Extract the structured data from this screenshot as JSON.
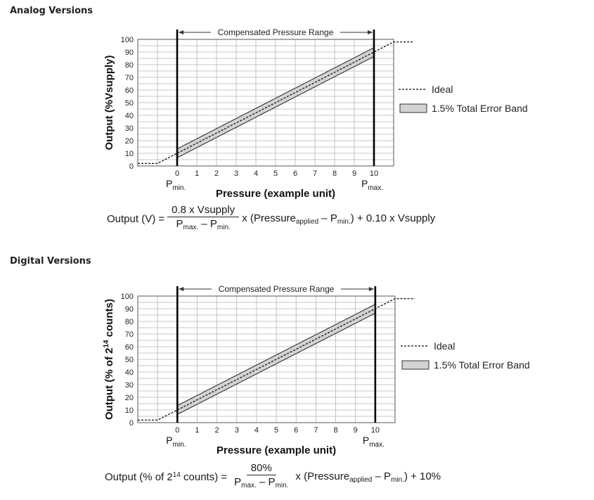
{
  "sections": [
    {
      "heading": "Analog Versions",
      "formula": {
        "lhs": "Output (V) =",
        "numerator": "0.8 x Vsupply",
        "den_a": "P",
        "den_a_sub": "max.",
        "den_mid": " – P",
        "den_b_sub": "min.",
        "rhs_1": "x (Pressure",
        "rhs_sub1": "applied",
        "rhs_2": " – P",
        "rhs_sub2": "min.",
        "rhs_3": ") + 0.10 x Vsupply"
      }
    },
    {
      "heading": "Digital Versions",
      "formula": {
        "lhs_1": "Output (% of 2",
        "lhs_sup": "14",
        "lhs_2": " counts) =",
        "numerator": "80%",
        "den_a": "P",
        "den_a_sub": "max.",
        "den_mid": " – P",
        "den_b_sub": "min.",
        "rhs_1": "x (Pressure",
        "rhs_sub1": "applied",
        "rhs_2": " – P",
        "rhs_sub2": "min.",
        "rhs_3": ") + 10%"
      }
    }
  ],
  "chart_data": [
    {
      "type": "line",
      "ylabel": "Output (%Vsupply)",
      "xlabel": "Pressure (example unit)",
      "x_ticks": [
        0,
        1,
        2,
        3,
        4,
        5,
        6,
        7,
        8,
        9,
        10
      ],
      "y_ticks": [
        0,
        10,
        20,
        30,
        40,
        50,
        60,
        70,
        80,
        90,
        100
      ],
      "xlim": [
        -2,
        11
      ],
      "ylim": [
        0,
        100
      ],
      "grid": true,
      "pmin_label": "P",
      "pmin_sub": "min.",
      "pmax_label": "P",
      "pmax_sub": "max.",
      "range_label": "Compensated Pressure Range",
      "legend": {
        "placement": "right",
        "ideal": "Ideal",
        "band": "1.5% Total Error Band"
      },
      "ideal": {
        "x": [
          -2,
          -1,
          0,
          10,
          11,
          12
        ],
        "y": [
          2,
          2,
          10,
          90,
          98,
          98
        ]
      },
      "error_band_percent": 1.5,
      "colors": {
        "band": "#d3d3d3",
        "line": "#222222"
      }
    },
    {
      "type": "line",
      "ylabel": "Output (% of 2",
      "ylabel_sup": "14",
      "ylabel_end": " counts)",
      "xlabel": "Pressure (example unit)",
      "x_ticks": [
        0,
        1,
        2,
        3,
        4,
        5,
        6,
        7,
        8,
        9,
        10
      ],
      "y_ticks": [
        0,
        10,
        20,
        30,
        40,
        50,
        60,
        70,
        80,
        90,
        100
      ],
      "xlim": [
        -2,
        11
      ],
      "ylim": [
        0,
        100
      ],
      "grid": true,
      "pmin_label": "P",
      "pmin_sub": "min.",
      "pmax_label": "P",
      "pmax_sub": "max.",
      "range_label": "Compensated Pressure Range",
      "legend": {
        "placement": "right",
        "ideal": "Ideal",
        "band": "1.5% Total Error Band"
      },
      "ideal": {
        "x": [
          -2,
          -1,
          0,
          10,
          11,
          12
        ],
        "y": [
          2,
          2,
          10,
          90,
          98,
          98
        ]
      },
      "error_band_percent": 1.5,
      "colors": {
        "band": "#d3d3d3",
        "line": "#222222"
      }
    }
  ]
}
